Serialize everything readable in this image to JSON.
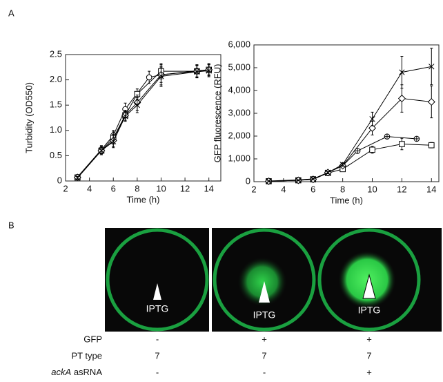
{
  "panels": [
    "A",
    "B"
  ],
  "chart_data": [
    {
      "type": "line",
      "xlabel": "Time (h)",
      "ylabel": "Turbidity (OD550)",
      "xlim": [
        2,
        15
      ],
      "ylim": [
        0,
        2.5
      ],
      "xticks": [
        2,
        4,
        6,
        8,
        10,
        12,
        14
      ],
      "yticks": [
        0,
        0.5,
        {
          "value": 1,
          "label": "1.0"
        },
        1.5,
        {
          "value": 2,
          "label": "2.0"
        },
        2.5
      ],
      "series": [
        {
          "marker": "circle",
          "color": "#000000",
          "x": [
            3,
            5,
            6,
            7,
            9,
            10,
            13,
            14
          ],
          "values": [
            0.08,
            0.62,
            0.9,
            1.42,
            2.05,
            2.1,
            2.18,
            2.2
          ],
          "errors": [
            0.03,
            0.08,
            0.1,
            0.12,
            0.12,
            0.15,
            0.12,
            0.1
          ]
        },
        {
          "marker": "square",
          "color": "#000000",
          "x": [
            3,
            5,
            6,
            7,
            8,
            10,
            13,
            14
          ],
          "values": [
            0.07,
            0.6,
            0.85,
            1.3,
            1.72,
            2.17,
            2.17,
            2.2
          ],
          "errors": [
            0.03,
            0.08,
            0.12,
            0.1,
            0.1,
            0.15,
            0.12,
            0.12
          ]
        },
        {
          "marker": "diamond",
          "color": "#000000",
          "x": [
            3,
            5,
            6,
            7,
            8,
            10,
            13,
            14
          ],
          "values": [
            0.07,
            0.6,
            0.8,
            1.3,
            1.55,
            2.1,
            2.17,
            2.2
          ],
          "errors": [
            0.03,
            0.08,
            0.12,
            0.1,
            0.15,
            0.2,
            0.12,
            0.12
          ]
        },
        {
          "marker": "x",
          "color": "#000000",
          "x": [
            3,
            5,
            6,
            7,
            8,
            10,
            13,
            14
          ],
          "values": [
            0.06,
            0.6,
            0.78,
            1.28,
            1.5,
            2.07,
            2.16,
            2.18
          ],
          "errors": [
            0.03,
            0.08,
            0.12,
            0.1,
            0.15,
            0.2,
            0.12,
            0.12
          ]
        }
      ]
    },
    {
      "type": "line",
      "xlabel": "Time (h)",
      "ylabel": "GFP fluorescence  (RFU)",
      "xlim": [
        2,
        14.5
      ],
      "ylim": [
        0,
        6000
      ],
      "xticks": [
        2,
        4,
        6,
        8,
        10,
        12,
        14
      ],
      "yticks": [
        0,
        {
          "value": 1000,
          "label": "1,000"
        },
        {
          "value": 2000,
          "label": "2,000"
        },
        {
          "value": 3000,
          "label": "3,000"
        },
        {
          "value": 4000,
          "label": "4,000"
        },
        {
          "value": 5000,
          "label": "5,000"
        },
        {
          "value": 6000,
          "label": "6,000"
        }
      ],
      "series": [
        {
          "marker": "circle-plus",
          "color": "#000000",
          "x": [
            3,
            5,
            6,
            7,
            8,
            9,
            11,
            13
          ],
          "values": [
            30,
            80,
            120,
            400,
            700,
            1350,
            1980,
            1880
          ],
          "errors": [
            20,
            20,
            30,
            50,
            80,
            80,
            60,
            60
          ]
        },
        {
          "marker": "square",
          "color": "#000000",
          "x": [
            3,
            5,
            6,
            7,
            8,
            10,
            12,
            14
          ],
          "values": [
            20,
            60,
            100,
            380,
            550,
            1400,
            1650,
            1600
          ],
          "errors": [
            20,
            20,
            30,
            50,
            80,
            150,
            250,
            120
          ]
        },
        {
          "marker": "diamond",
          "color": "#000000",
          "x": [
            3,
            5,
            6,
            7,
            8,
            10,
            12,
            14
          ],
          "values": [
            20,
            60,
            100,
            400,
            700,
            2350,
            3650,
            3500
          ],
          "errors": [
            20,
            20,
            30,
            50,
            80,
            300,
            600,
            700
          ]
        },
        {
          "marker": "x",
          "color": "#000000",
          "x": [
            3,
            5,
            6,
            7,
            8,
            10,
            12,
            14
          ],
          "values": [
            20,
            60,
            120,
            400,
            750,
            2750,
            4800,
            5050
          ],
          "errors": [
            20,
            20,
            30,
            50,
            80,
            300,
            700,
            800
          ]
        }
      ]
    }
  ],
  "plate_labels": [
    "IPTG",
    "IPTG",
    "IPTG"
  ],
  "table": {
    "rows": [
      {
        "label": "GFP",
        "values": [
          "-",
          "+",
          "+"
        ]
      },
      {
        "label": "PT type",
        "values": [
          "7",
          "7",
          "7"
        ]
      },
      {
        "label_italic": "ackA",
        "label": "asRNA",
        "values": [
          "-",
          "-",
          "+"
        ]
      }
    ]
  }
}
